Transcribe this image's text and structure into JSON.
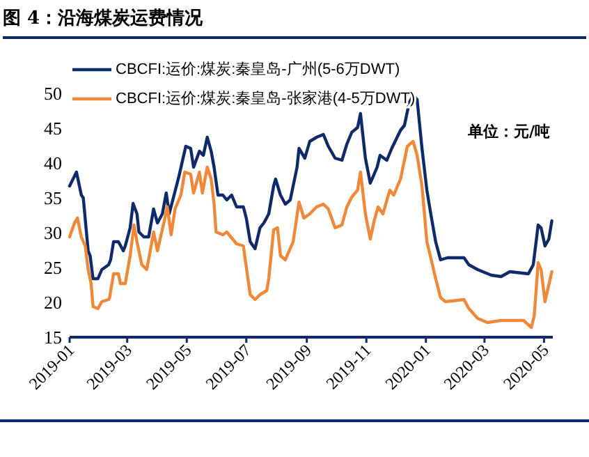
{
  "chart_data": {
    "type": "line",
    "title": "图 4：沿海煤炭运费情况",
    "annotations": [
      "单位：元/吨"
    ],
    "legend": "top left",
    "xlim": [
      "2019-01-01",
      "2020-05-10"
    ],
    "xticks": [
      "2019-01",
      "2019-03",
      "2019-05",
      "2019-07",
      "2019-09",
      "2019-11",
      "2020-01",
      "2020-03",
      "2020-05"
    ],
    "ylim": [
      15,
      50
    ],
    "yticks": [
      15,
      20,
      25,
      30,
      35,
      40,
      45,
      50
    ],
    "series": [
      {
        "name": "CBCFI:运价:煤炭:秦皇岛-广州(5-6万DWT)",
        "color": "#0d2a6b",
        "x": [
          "2019-01-01",
          "2019-01-08",
          "2019-01-13",
          "2019-01-15",
          "2019-01-20",
          "2019-01-22",
          "2019-01-25",
          "2019-01-30",
          "2019-02-03",
          "2019-02-10",
          "2019-02-12",
          "2019-02-15",
          "2019-02-20",
          "2019-02-25",
          "2019-02-27",
          "2019-03-04",
          "2019-03-07",
          "2019-03-11",
          "2019-03-13",
          "2019-03-18",
          "2019-03-23",
          "2019-03-28",
          "2019-04-01",
          "2019-04-06",
          "2019-04-10",
          "2019-04-13",
          "2019-04-18",
          "2019-04-23",
          "2019-04-30",
          "2019-05-05",
          "2019-05-08",
          "2019-05-14",
          "2019-05-18",
          "2019-05-22",
          "2019-05-26",
          "2019-05-29",
          "2019-06-02",
          "2019-06-07",
          "2019-06-11",
          "2019-06-16",
          "2019-06-21",
          "2019-06-28",
          "2019-07-01",
          "2019-07-05",
          "2019-07-10",
          "2019-07-15",
          "2019-07-19",
          "2019-07-24",
          "2019-07-29",
          "2019-07-31",
          "2019-08-05",
          "2019-08-10",
          "2019-08-15",
          "2019-08-22",
          "2019-08-24",
          "2019-08-30",
          "2019-09-04",
          "2019-09-11",
          "2019-09-18",
          "2019-09-23",
          "2019-09-30",
          "2019-10-07",
          "2019-10-12",
          "2019-10-17",
          "2019-10-23",
          "2019-10-26",
          "2019-10-31",
          "2019-11-05",
          "2019-11-12",
          "2019-11-15",
          "2019-11-22",
          "2019-11-27",
          "2019-12-06",
          "2019-12-10",
          "2019-12-15",
          "2019-12-19",
          "2019-12-23",
          "2019-12-28",
          "2020-01-02",
          "2020-01-06",
          "2020-01-11",
          "2020-01-16",
          "2020-01-23",
          "2020-02-09",
          "2020-02-14",
          "2020-02-23",
          "2020-03-08",
          "2020-03-18",
          "2020-03-27",
          "2020-04-15",
          "2020-04-20",
          "2020-04-25",
          "2020-04-28",
          "2020-05-02",
          "2020-05-06",
          "2020-05-09"
        ],
        "values": [
          36.7,
          38.7,
          35.4,
          35.0,
          27.4,
          26.7,
          23.4,
          23.4,
          24.7,
          25.4,
          26.1,
          28.7,
          28.7,
          27.4,
          28.1,
          30.7,
          34.2,
          32.7,
          30.1,
          29.4,
          29.4,
          33.4,
          31.4,
          32.7,
          35.7,
          32.7,
          35.4,
          38.1,
          42.4,
          42.1,
          39.4,
          41.7,
          41.1,
          43.7,
          41.7,
          39.4,
          35.4,
          35.4,
          34.7,
          35.4,
          33.7,
          33.7,
          32.1,
          28.7,
          27.7,
          30.7,
          31.4,
          32.7,
          36.7,
          37.7,
          35.4,
          34.1,
          34.7,
          39.4,
          42.1,
          40.7,
          43.1,
          43.7,
          44.1,
          42.4,
          40.7,
          40.4,
          42.7,
          44.4,
          45.1,
          47.1,
          40.7,
          37.1,
          39.4,
          41.1,
          40.4,
          42.1,
          44.7,
          45.4,
          48.7,
          49.7,
          49.1,
          42.1,
          36.1,
          32.7,
          28.7,
          26.1,
          26.4,
          26.4,
          25.4,
          24.7,
          23.9,
          23.7,
          24.4,
          24.1,
          25.4,
          31.1,
          30.7,
          28.1,
          29.1,
          31.7
        ]
      },
      {
        "name": "CBCFI:运价:煤炭:秦皇岛-张家港(4-5万DWT)",
        "color": "#f0883a",
        "x": [
          "2019-01-01",
          "2019-01-06",
          "2019-01-09",
          "2019-01-13",
          "2019-01-17",
          "2019-01-20",
          "2019-01-23",
          "2019-01-25",
          "2019-01-30",
          "2019-02-03",
          "2019-02-10",
          "2019-02-11",
          "2019-02-15",
          "2019-02-20",
          "2019-02-22",
          "2019-02-27",
          "2019-03-04",
          "2019-03-08",
          "2019-03-11",
          "2019-03-16",
          "2019-03-21",
          "2019-03-25",
          "2019-03-28",
          "2019-04-01",
          "2019-04-08",
          "2019-04-11",
          "2019-04-15",
          "2019-04-19",
          "2019-04-25",
          "2019-04-29",
          "2019-05-05",
          "2019-05-08",
          "2019-05-14",
          "2019-05-17",
          "2019-05-22",
          "2019-05-26",
          "2019-05-29",
          "2019-05-31",
          "2019-06-07",
          "2019-06-11",
          "2019-06-21",
          "2019-06-28",
          "2019-06-30",
          "2019-07-05",
          "2019-07-10",
          "2019-07-15",
          "2019-07-22",
          "2019-07-24",
          "2019-07-29",
          "2019-08-02",
          "2019-08-05",
          "2019-08-10",
          "2019-08-18",
          "2019-08-24",
          "2019-08-29",
          "2019-09-04",
          "2019-09-11",
          "2019-09-18",
          "2019-09-23",
          "2019-09-30",
          "2019-10-07",
          "2019-10-12",
          "2019-10-17",
          "2019-10-23",
          "2019-10-26",
          "2019-10-31",
          "2019-11-05",
          "2019-11-09",
          "2019-11-13",
          "2019-11-18",
          "2019-11-25",
          "2019-11-29",
          "2019-12-06",
          "2019-12-13",
          "2019-12-19",
          "2019-12-23",
          "2019-12-28",
          "2020-01-02",
          "2020-01-06",
          "2020-01-11",
          "2020-01-16",
          "2020-01-21",
          "2020-02-09",
          "2020-02-14",
          "2020-02-23",
          "2020-03-04",
          "2020-03-18",
          "2020-04-10",
          "2020-04-18",
          "2020-04-21",
          "2020-04-25",
          "2020-04-28",
          "2020-05-02",
          "2020-05-09"
        ],
        "values": [
          29.4,
          31.4,
          32.1,
          29.4,
          28.1,
          24.7,
          22.7,
          19.4,
          19.1,
          20.1,
          20.4,
          20.7,
          24.1,
          24.1,
          22.7,
          22.7,
          26.7,
          31.1,
          28.7,
          25.4,
          24.7,
          27.7,
          30.1,
          27.4,
          31.7,
          33.7,
          29.7,
          33.4,
          35.4,
          38.7,
          38.4,
          35.7,
          38.7,
          35.7,
          39.4,
          37.7,
          34.1,
          30.1,
          29.7,
          30.1,
          28.4,
          28.1,
          26.1,
          21.1,
          20.4,
          21.1,
          21.7,
          23.4,
          30.4,
          30.7,
          26.7,
          26.1,
          28.7,
          34.4,
          32.1,
          32.7,
          33.7,
          34.1,
          33.4,
          30.7,
          31.1,
          33.7,
          35.1,
          36.1,
          38.7,
          32.7,
          29.1,
          31.7,
          33.7,
          32.7,
          36.1,
          35.4,
          37.7,
          42.4,
          43.1,
          41.1,
          36.7,
          28.7,
          26.4,
          23.4,
          20.7,
          20.1,
          20.4,
          19.1,
          17.7,
          17.1,
          17.4,
          17.4,
          16.4,
          18.1,
          25.7,
          24.7,
          20.1,
          24.4
        ]
      }
    ]
  }
}
